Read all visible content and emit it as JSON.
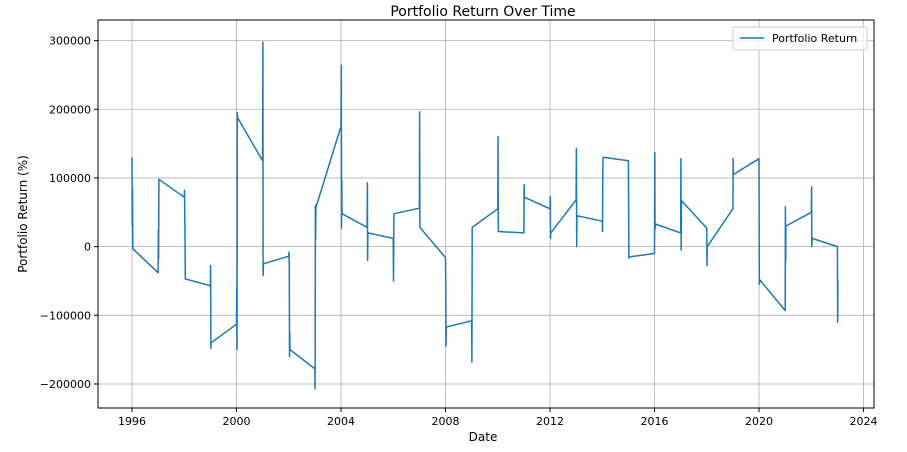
{
  "chart_data": {
    "type": "line",
    "title": "Portfolio Return Over Time",
    "xlabel": "Date",
    "ylabel": "Portfolio Return (%)",
    "xlim": [
      1994.7,
      2024.4
    ],
    "ylim": [
      -235000,
      330000
    ],
    "x_ticks": [
      1996,
      2000,
      2004,
      2008,
      2012,
      2016,
      2020,
      2024
    ],
    "y_ticks": [
      -200000,
      -100000,
      0,
      100000,
      200000,
      300000
    ],
    "y_tick_labels": [
      "−200000",
      "−100000",
      "0",
      "100000",
      "200000",
      "300000"
    ],
    "grid": true,
    "legend": {
      "position": "top-right",
      "entries": [
        "Portfolio Return"
      ]
    },
    "colors": {
      "series": "#1f77b4",
      "grid": "#b0b0b0"
    },
    "series": [
      {
        "name": "Portfolio Return",
        "points": [
          [
            1996.0,
            130000
          ],
          [
            1996.01,
            30000
          ],
          [
            1996.02,
            85000
          ],
          [
            1996.03,
            -3000
          ],
          [
            1997.0,
            -38000
          ],
          [
            1997.01,
            25000
          ],
          [
            1997.02,
            -18000
          ],
          [
            1997.03,
            98000
          ],
          [
            1998.0,
            72000
          ],
          [
            1998.01,
            82000
          ],
          [
            1998.02,
            55000
          ],
          [
            1998.03,
            20000
          ],
          [
            1998.04,
            -47000
          ],
          [
            1999.0,
            -57000
          ],
          [
            1999.01,
            -28000
          ],
          [
            1999.02,
            -148000
          ],
          [
            1999.03,
            -140000
          ],
          [
            2000.0,
            -113000
          ],
          [
            2000.01,
            -60000
          ],
          [
            2000.02,
            -150000
          ],
          [
            2000.03,
            195000
          ],
          [
            2000.04,
            188000
          ],
          [
            2001.0,
            125000
          ],
          [
            2001.01,
            298000
          ],
          [
            2001.02,
            -42000
          ],
          [
            2001.03,
            -25000
          ],
          [
            2002.0,
            -14000
          ],
          [
            2002.01,
            -8000
          ],
          [
            2002.02,
            -30000
          ],
          [
            2002.03,
            -160000
          ],
          [
            2002.04,
            -125000
          ],
          [
            2002.05,
            -150000
          ],
          [
            2003.0,
            -178000
          ],
          [
            2003.01,
            -207000
          ],
          [
            2003.02,
            60000
          ],
          [
            2003.03,
            10000
          ],
          [
            2003.04,
            57000
          ],
          [
            2004.0,
            175000
          ],
          [
            2004.01,
            264000
          ],
          [
            2004.02,
            27000
          ],
          [
            2004.03,
            98000
          ],
          [
            2004.04,
            48000
          ],
          [
            2005.0,
            28000
          ],
          [
            2005.01,
            93000
          ],
          [
            2005.02,
            -20000
          ],
          [
            2005.03,
            20000
          ],
          [
            2006.0,
            12000
          ],
          [
            2006.01,
            -50000
          ],
          [
            2006.02,
            30000
          ],
          [
            2006.03,
            48000
          ],
          [
            2007.0,
            56000
          ],
          [
            2007.01,
            196000
          ],
          [
            2007.02,
            28000
          ],
          [
            2008.0,
            -16000
          ],
          [
            2008.01,
            -65000
          ],
          [
            2008.02,
            -145000
          ],
          [
            2008.03,
            -117000
          ],
          [
            2009.0,
            -108000
          ],
          [
            2009.01,
            -168000
          ],
          [
            2009.02,
            28000
          ],
          [
            2010.0,
            55000
          ],
          [
            2010.01,
            160000
          ],
          [
            2010.02,
            22000
          ],
          [
            2011.0,
            20000
          ],
          [
            2011.01,
            90000
          ],
          [
            2011.02,
            72000
          ],
          [
            2012.0,
            55000
          ],
          [
            2012.01,
            73000
          ],
          [
            2012.02,
            12000
          ],
          [
            2012.03,
            20000
          ],
          [
            2013.0,
            68000
          ],
          [
            2013.01,
            143000
          ],
          [
            2013.02,
            0
          ],
          [
            2013.03,
            45000
          ],
          [
            2014.0,
            37000
          ],
          [
            2014.01,
            22000
          ],
          [
            2014.02,
            110000
          ],
          [
            2014.03,
            130000
          ],
          [
            2015.0,
            125000
          ],
          [
            2015.01,
            38000
          ],
          [
            2015.02,
            -17000
          ],
          [
            2015.03,
            -15000
          ],
          [
            2016.0,
            -10000
          ],
          [
            2016.01,
            137000
          ],
          [
            2016.02,
            25000
          ],
          [
            2016.03,
            33000
          ],
          [
            2017.0,
            20000
          ],
          [
            2017.01,
            128000
          ],
          [
            2017.02,
            -5000
          ],
          [
            2017.03,
            67000
          ],
          [
            2018.0,
            27000
          ],
          [
            2018.01,
            -28000
          ],
          [
            2018.02,
            0
          ],
          [
            2019.0,
            55000
          ],
          [
            2019.01,
            128000
          ],
          [
            2019.02,
            105000
          ],
          [
            2020.0,
            128000
          ],
          [
            2020.01,
            -55000
          ],
          [
            2020.02,
            -48000
          ],
          [
            2021.0,
            -93000
          ],
          [
            2021.01,
            58000
          ],
          [
            2021.02,
            -22000
          ],
          [
            2021.03,
            30000
          ],
          [
            2022.0,
            50000
          ],
          [
            2022.01,
            87000
          ],
          [
            2022.02,
            0
          ],
          [
            2022.03,
            12000
          ],
          [
            2023.0,
            0
          ],
          [
            2023.01,
            -110000
          ],
          [
            2023.02,
            -50000
          ]
        ]
      }
    ]
  }
}
